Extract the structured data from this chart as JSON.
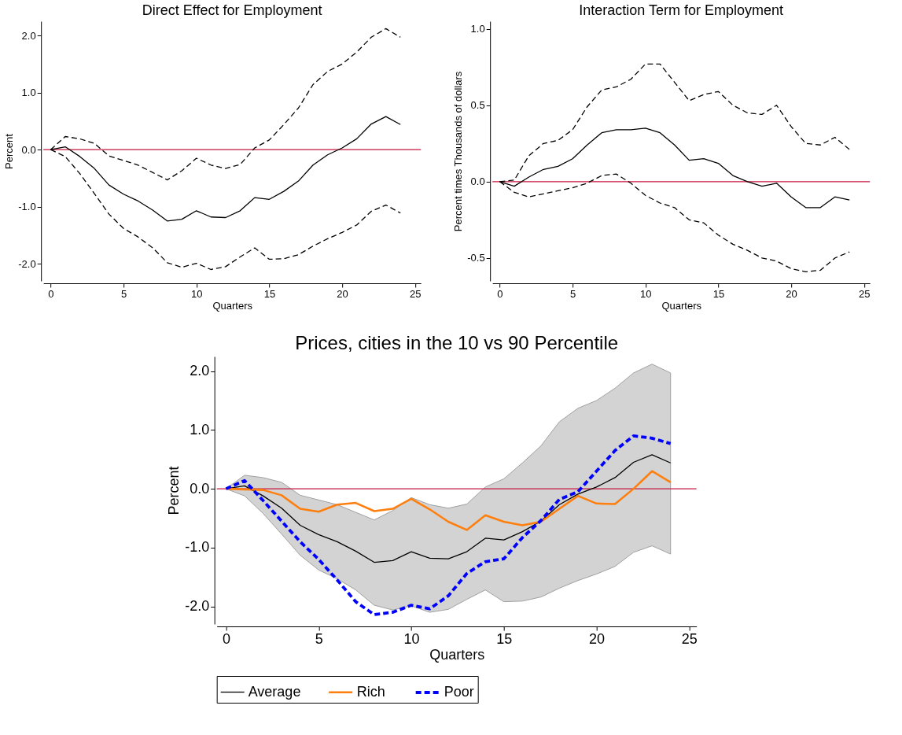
{
  "chart_data": [
    {
      "type": "line",
      "title": "Direct Effect for Employment",
      "xlabel": "Quarters",
      "ylabel": "Percent",
      "x": [
        0,
        1,
        2,
        3,
        4,
        5,
        6,
        7,
        8,
        9,
        10,
        11,
        12,
        13,
        14,
        15,
        16,
        17,
        18,
        19,
        20,
        21,
        22,
        23,
        24
      ],
      "xlim": [
        -0.5,
        25.4
      ],
      "xticks": [
        0,
        5,
        10,
        15,
        20,
        25
      ],
      "ylim": [
        -2.3,
        2.25
      ],
      "yticks": [
        {
          "value": -2,
          "label": "-2.0"
        },
        {
          "value": -1,
          "label": "-1.0"
        },
        {
          "value": 0,
          "label": "0.0"
        },
        {
          "value": 1,
          "label": "1.0"
        },
        {
          "value": 2,
          "label": "2.0"
        }
      ],
      "grid": false,
      "legend": false,
      "marker": "none",
      "ref_lines": [
        {
          "axis": "y",
          "value": 0,
          "color": "#c8163f"
        }
      ],
      "series": [
        {
          "color": "#000000",
          "line_style": "solid",
          "values": [
            0,
            0.05,
            -0.12,
            -0.33,
            -0.62,
            -0.78,
            -0.9,
            -1.06,
            -1.25,
            -1.22,
            -1.07,
            -1.18,
            -1.19,
            -1.07,
            -0.84,
            -0.87,
            -0.73,
            -0.55,
            -0.27,
            -0.09,
            0.03,
            0.19,
            0.45,
            0.58,
            0.44
          ]
        },
        {
          "color": "#000000",
          "line_style": "dashed",
          "values": [
            0,
            0.23,
            0.19,
            0.11,
            -0.11,
            -0.19,
            -0.27,
            -0.4,
            -0.53,
            -0.37,
            -0.15,
            -0.27,
            -0.33,
            -0.26,
            0.03,
            0.17,
            0.44,
            0.73,
            1.14,
            1.37,
            1.5,
            1.71,
            1.97,
            2.12,
            1.97
          ]
        },
        {
          "color": "#000000",
          "line_style": "dashed",
          "values": [
            0,
            -0.12,
            -0.42,
            -0.77,
            -1.13,
            -1.38,
            -1.53,
            -1.72,
            -1.98,
            -2.06,
            -1.99,
            -2.1,
            -2.05,
            -1.88,
            -1.72,
            -1.92,
            -1.91,
            -1.84,
            -1.69,
            -1.56,
            -1.45,
            -1.32,
            -1.08,
            -0.97,
            -1.11
          ]
        }
      ]
    },
    {
      "type": "line",
      "title": "Interaction Term for Employment",
      "xlabel": "Quarters",
      "ylabel": "Percent times Thousands of dollars",
      "x": [
        0,
        1,
        2,
        3,
        4,
        5,
        6,
        7,
        8,
        9,
        10,
        11,
        12,
        13,
        14,
        15,
        16,
        17,
        18,
        19,
        20,
        21,
        22,
        23,
        24
      ],
      "xlim": [
        -0.5,
        25.4
      ],
      "xticks": [
        0,
        5,
        10,
        15,
        20,
        25
      ],
      "ylim": [
        -0.65,
        1.05
      ],
      "yticks": [
        {
          "value": -0.5,
          "label": "-0.5"
        },
        {
          "value": 0,
          "label": "0.0"
        },
        {
          "value": 0.5,
          "label": "0.5"
        },
        {
          "value": 1,
          "label": "1.0"
        }
      ],
      "grid": false,
      "legend": false,
      "marker": "none",
      "ref_lines": [
        {
          "axis": "y",
          "value": 0,
          "color": "#c8163f"
        }
      ],
      "series": [
        {
          "color": "#000000",
          "line_style": "solid",
          "values": [
            0,
            -0.03,
            0.03,
            0.08,
            0.1,
            0.15,
            0.24,
            0.32,
            0.34,
            0.34,
            0.35,
            0.32,
            0.24,
            0.14,
            0.15,
            0.12,
            0.04,
            0,
            -0.03,
            -0.01,
            -0.1,
            -0.17,
            -0.17,
            -0.1,
            -0.12
          ]
        },
        {
          "color": "#000000",
          "line_style": "dashed",
          "values": [
            0,
            0.01,
            0.17,
            0.25,
            0.27,
            0.34,
            0.49,
            0.6,
            0.62,
            0.67,
            0.77,
            0.77,
            0.65,
            0.53,
            0.57,
            0.59,
            0.5,
            0.45,
            0.44,
            0.5,
            0.36,
            0.25,
            0.24,
            0.29,
            0.21
          ]
        },
        {
          "color": "#000000",
          "line_style": "dashed",
          "values": [
            0,
            -0.07,
            -0.1,
            -0.08,
            -0.06,
            -0.04,
            -0.01,
            0.04,
            0.05,
            -0.01,
            -0.09,
            -0.14,
            -0.17,
            -0.25,
            -0.27,
            -0.35,
            -0.41,
            -0.45,
            -0.5,
            -0.52,
            -0.57,
            -0.59,
            -0.58,
            -0.5,
            -0.46
          ]
        }
      ]
    },
    {
      "type": "line",
      "title": "Prices, cities in the 10 vs 90 Percentile",
      "xlabel": "Quarters",
      "ylabel": "Percent",
      "x": [
        0,
        1,
        2,
        3,
        4,
        5,
        6,
        7,
        8,
        9,
        10,
        11,
        12,
        13,
        14,
        15,
        16,
        17,
        18,
        19,
        20,
        21,
        22,
        23,
        24
      ],
      "xlim": [
        -0.5,
        25.4
      ],
      "xticks": [
        0,
        5,
        10,
        15,
        20,
        25
      ],
      "ylim": [
        -2.3,
        2.25
      ],
      "yticks": [
        {
          "value": -2,
          "label": "-2.0"
        },
        {
          "value": -1,
          "label": "-1.0"
        },
        {
          "value": 0,
          "label": "0.0"
        },
        {
          "value": 1,
          "label": "1.0"
        },
        {
          "value": 2,
          "label": "2.0"
        }
      ],
      "grid": false,
      "legend": "bottom",
      "marker": "none",
      "ref_lines": [
        {
          "axis": "y",
          "value": 0,
          "color": "#c8163f"
        }
      ],
      "series": [
        {
          "name": "Average",
          "color": "#000000",
          "line_style": "solid",
          "values": [
            0,
            0.05,
            -0.12,
            -0.33,
            -0.62,
            -0.78,
            -0.9,
            -1.06,
            -1.25,
            -1.22,
            -1.07,
            -1.18,
            -1.19,
            -1.07,
            -0.84,
            -0.87,
            -0.73,
            -0.55,
            -0.27,
            -0.09,
            0.03,
            0.19,
            0.45,
            0.58,
            0.44
          ],
          "lower": [
            0,
            -0.12,
            -0.42,
            -0.77,
            -1.13,
            -1.38,
            -1.53,
            -1.72,
            -1.98,
            -2.06,
            -1.99,
            -2.1,
            -2.05,
            -1.88,
            -1.72,
            -1.92,
            -1.91,
            -1.84,
            -1.69,
            -1.56,
            -1.45,
            -1.32,
            -1.08,
            -0.97,
            -1.11
          ],
          "upper": [
            0,
            0.23,
            0.19,
            0.11,
            -0.11,
            -0.19,
            -0.27,
            -0.4,
            -0.53,
            -0.37,
            -0.15,
            -0.27,
            -0.33,
            -0.26,
            0.03,
            0.17,
            0.44,
            0.73,
            1.14,
            1.37,
            1.5,
            1.71,
            1.97,
            2.12,
            1.97
          ]
        },
        {
          "name": "Rich",
          "color": "#ff7f0e",
          "line_style": "solid",
          "values": [
            0,
            -0.01,
            -0.02,
            -0.11,
            -0.34,
            -0.39,
            -0.27,
            -0.24,
            -0.38,
            -0.34,
            -0.17,
            -0.35,
            -0.56,
            -0.7,
            -0.45,
            -0.56,
            -0.62,
            -0.56,
            -0.34,
            -0.12,
            -0.25,
            -0.26,
            0.0,
            0.3,
            0.11
          ]
        },
        {
          "name": "Poor",
          "color": "#0000ff",
          "line_style": "dashed",
          "values": [
            0,
            0.14,
            -0.2,
            -0.55,
            -0.9,
            -1.2,
            -1.55,
            -1.92,
            -2.14,
            -2.1,
            -1.98,
            -2.04,
            -1.82,
            -1.44,
            -1.24,
            -1.19,
            -0.83,
            -0.54,
            -0.18,
            -0.05,
            0.3,
            0.65,
            0.9,
            0.86,
            0.77
          ]
        }
      ]
    }
  ]
}
